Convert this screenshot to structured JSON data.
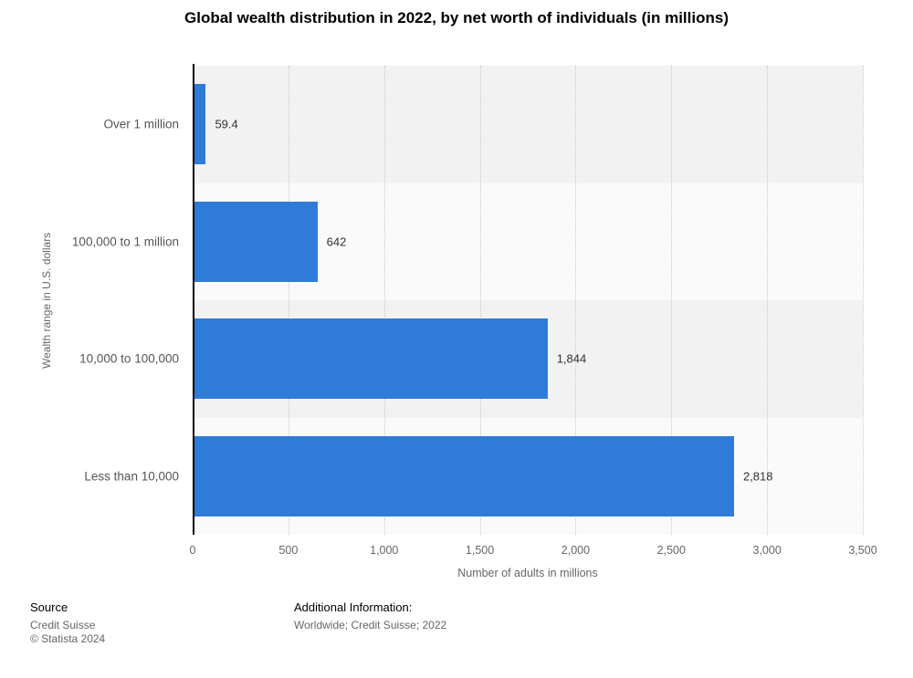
{
  "chart_data": {
    "type": "bar",
    "orientation": "horizontal",
    "title": "Global wealth distribution in 2022, by net worth of individuals (in millions)",
    "categories": [
      "Over 1 million",
      "100,000 to 1 million",
      "10,000 to 100,000",
      "Less than 10,000"
    ],
    "values": [
      59.4,
      642,
      1844,
      2818
    ],
    "value_labels": [
      "59.4",
      "642",
      "1,844",
      "2,818"
    ],
    "xlabel": "Number of adults in millions",
    "ylabel": "Wealth range in U.S. dollars",
    "xlim": [
      0,
      3500
    ],
    "ticks": [
      0,
      500,
      1000,
      1500,
      2000,
      2500,
      3000,
      3500
    ],
    "tick_labels": [
      "0",
      "500",
      "1,000",
      "1,500",
      "2,000",
      "2,500",
      "3,000",
      "3,500"
    ],
    "bar_color": "#2f7bd8",
    "band_colors": [
      "#f2f2f2",
      "#fafafa"
    ],
    "grid": "vertical-dotted",
    "legend": "none"
  },
  "footer": {
    "source_label": "Source",
    "source_name": "Credit Suisse",
    "copyright": "© Statista 2024",
    "additional_label": "Additional Information:",
    "additional_info": "Worldwide; Credit Suisse; 2022"
  }
}
